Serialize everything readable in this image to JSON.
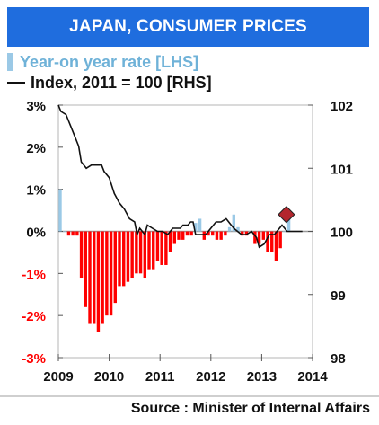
{
  "header": {
    "title": "JAPAN, CONSUMER PRICES"
  },
  "legend": {
    "bar_label": "Year-on year rate [LHS]",
    "line_label": "Index, 2011 = 100 [RHS]"
  },
  "source": "Source : Minister of Internal Affairs",
  "colors": {
    "title_bg": "#1f6dde",
    "negative_bar": "#ff0000",
    "positive_bar": "#9bc9e6",
    "line": "#111111"
  },
  "chart_data": {
    "type": "bar",
    "x_ticks": [
      "2009",
      "2010",
      "2011",
      "2012",
      "2013",
      "2014"
    ],
    "left_axis": {
      "ticks": [
        "3%",
        "2%",
        "1%",
        "0%",
        "-1%",
        "-2%",
        "-3%"
      ],
      "ylim": [
        -3,
        3
      ],
      "negative_color": "#ff0000"
    },
    "right_axis": {
      "ticks": [
        "102",
        "101",
        "100",
        "99",
        "98"
      ],
      "ylim": [
        98,
        102
      ]
    },
    "series": [
      {
        "name": "Year-on year rate [LHS]",
        "kind": "bar",
        "x_start": 2009.0,
        "step": 0.0833,
        "values": [
          1.0,
          0.0,
          -0.1,
          -0.1,
          -0.1,
          -1.1,
          -1.8,
          -2.2,
          -2.2,
          -2.4,
          -2.2,
          -2.0,
          -2.0,
          -1.7,
          -1.3,
          -1.3,
          -1.2,
          -1.1,
          -1.0,
          -1.0,
          -1.1,
          -0.9,
          -0.9,
          -0.7,
          -0.8,
          -0.8,
          -0.5,
          -0.3,
          -0.2,
          -0.2,
          -0.1,
          -0.1,
          0.2,
          0.3,
          -0.2,
          -0.1,
          -0.1,
          -0.2,
          -0.2,
          -0.1,
          0.1,
          0.4,
          0.1,
          -0.1,
          -0.1,
          0.0,
          -0.3,
          -0.3,
          -0.2,
          -0.5,
          -0.5,
          -0.7,
          -0.4,
          0.0,
          0.4
        ]
      },
      {
        "name": "Index, 2011 = 100 [RHS]",
        "kind": "line",
        "points": [
          [
            2009.0,
            102.0
          ],
          [
            2009.05,
            101.9
          ],
          [
            2009.15,
            101.85
          ],
          [
            2009.3,
            101.55
          ],
          [
            2009.4,
            101.35
          ],
          [
            2009.45,
            101.1
          ],
          [
            2009.55,
            101.0
          ],
          [
            2009.65,
            101.05
          ],
          [
            2009.75,
            101.05
          ],
          [
            2009.85,
            101.05
          ],
          [
            2009.9,
            100.95
          ],
          [
            2010.0,
            100.85
          ],
          [
            2010.1,
            100.6
          ],
          [
            2010.2,
            100.45
          ],
          [
            2010.3,
            100.35
          ],
          [
            2010.4,
            100.2
          ],
          [
            2010.5,
            100.15
          ],
          [
            2010.55,
            99.95
          ],
          [
            2010.6,
            100.05
          ],
          [
            2010.7,
            99.95
          ],
          [
            2010.75,
            100.1
          ],
          [
            2010.85,
            100.05
          ],
          [
            2010.95,
            100.0
          ],
          [
            2011.05,
            100.0
          ],
          [
            2011.15,
            99.95
          ],
          [
            2011.25,
            100.05
          ],
          [
            2011.4,
            100.05
          ],
          [
            2011.45,
            100.1
          ],
          [
            2011.55,
            100.1
          ],
          [
            2011.6,
            100.15
          ],
          [
            2011.65,
            100.15
          ],
          [
            2011.7,
            99.95
          ],
          [
            2011.8,
            99.95
          ],
          [
            2011.9,
            99.95
          ],
          [
            2012.0,
            100.05
          ],
          [
            2012.1,
            100.15
          ],
          [
            2012.2,
            100.15
          ],
          [
            2012.3,
            100.2
          ],
          [
            2012.4,
            100.1
          ],
          [
            2012.45,
            100.05
          ],
          [
            2012.6,
            99.95
          ],
          [
            2012.7,
            99.95
          ],
          [
            2012.8,
            100.0
          ],
          [
            2012.9,
            99.9
          ],
          [
            2012.95,
            99.75
          ],
          [
            2013.05,
            99.8
          ],
          [
            2013.15,
            99.95
          ],
          [
            2013.25,
            99.95
          ],
          [
            2013.35,
            100.05
          ],
          [
            2013.4,
            100.1
          ],
          [
            2013.45,
            100.05
          ],
          [
            2013.5,
            100.0
          ],
          [
            2013.6,
            100.0
          ],
          [
            2013.7,
            100.0
          ],
          [
            2013.8,
            100.0
          ]
        ]
      }
    ],
    "markers": [
      {
        "x": 2013.45,
        "value": 0.4,
        "shape": "diamond",
        "color": "#b3262d"
      }
    ],
    "grid": false,
    "legend_position": "top-left"
  }
}
